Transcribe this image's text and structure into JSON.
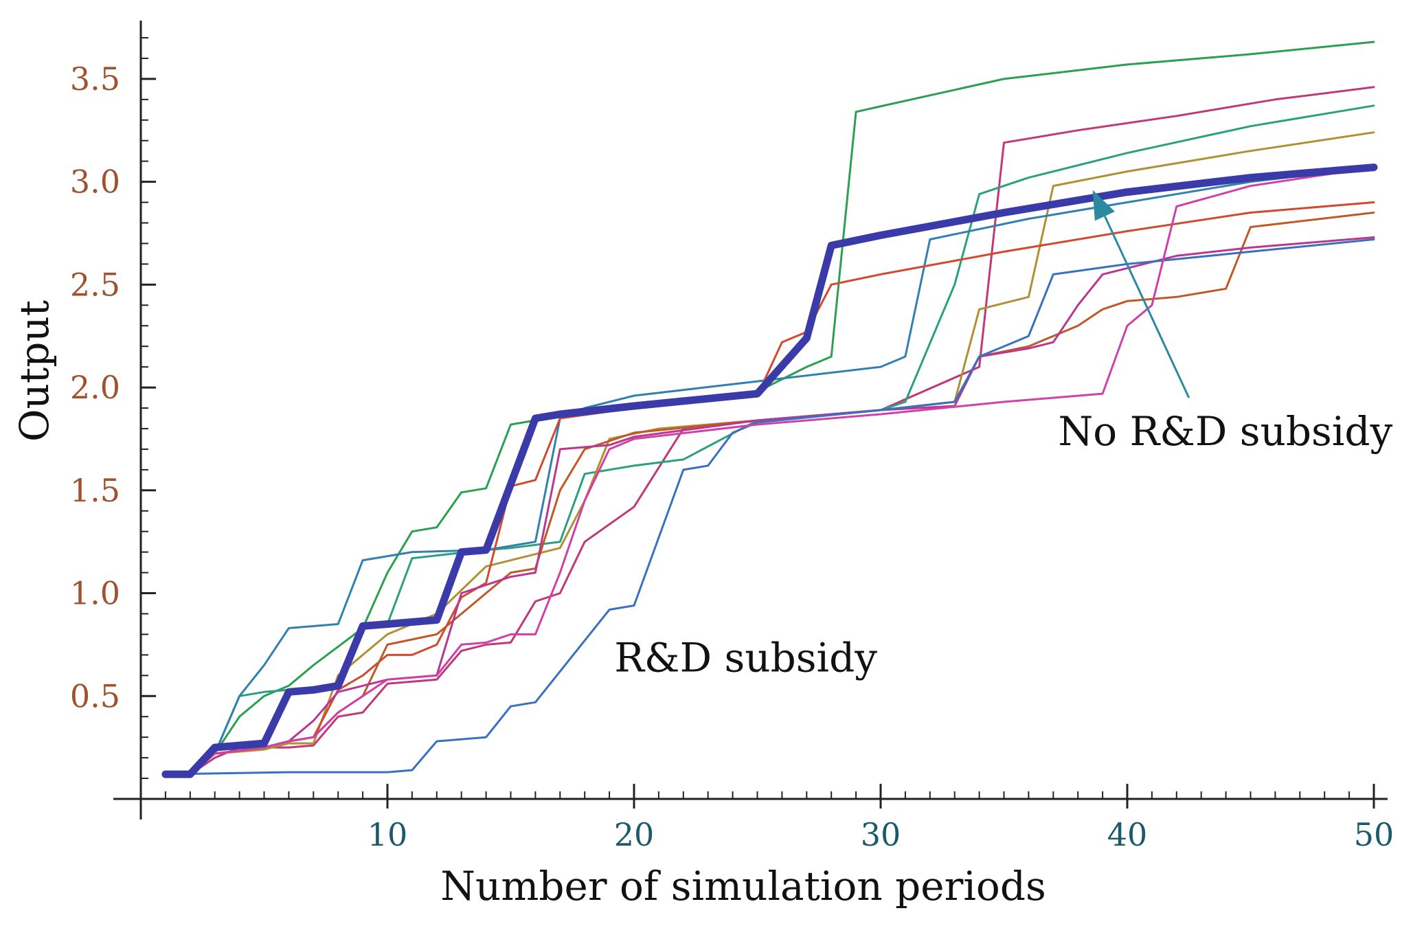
{
  "chart_data": {
    "type": "line",
    "title": "",
    "xlabel": "Number of simulation periods",
    "ylabel": "Output",
    "xlim": [
      0,
      50
    ],
    "ylim": [
      0,
      3.75
    ],
    "x_ticks": [
      10,
      20,
      30,
      40,
      50
    ],
    "y_ticks": [
      0.5,
      1.0,
      1.5,
      2.0,
      2.5,
      3.0,
      3.5
    ],
    "x_tick_labels": [
      "10",
      "20",
      "30",
      "40",
      "50"
    ],
    "y_tick_labels": [
      "0.5",
      "1.0",
      "1.5",
      "2.0",
      "2.5",
      "3.0",
      "3.5"
    ],
    "colors": {
      "x_tick_label": "#1a5a6a",
      "y_tick_label": "#a0522d",
      "axis": "#222222",
      "arrow": "#2a8aa0",
      "highlight": "#3a3aa8"
    },
    "annotations": [
      {
        "text": "No R&D subsidy",
        "x": 37.2,
        "y": 1.72
      },
      {
        "text": "R&D subsidy",
        "x": 19.2,
        "y": 0.62
      }
    ],
    "arrow": {
      "from": [
        42.5,
        1.95
      ],
      "to": [
        38.6,
        2.96
      ]
    },
    "series": [
      {
        "color": "#3a3aa8",
        "width": 11,
        "points": [
          [
            1,
            0.12
          ],
          [
            2,
            0.12
          ],
          [
            3,
            0.25
          ],
          [
            4,
            0.26
          ],
          [
            5,
            0.27
          ],
          [
            6,
            0.52
          ],
          [
            7,
            0.53
          ],
          [
            8,
            0.55
          ],
          [
            9,
            0.84
          ],
          [
            10,
            0.85
          ],
          [
            12,
            0.87
          ],
          [
            13,
            1.2
          ],
          [
            14,
            1.21
          ],
          [
            16,
            1.85
          ],
          [
            17,
            1.87
          ],
          [
            20,
            1.91
          ],
          [
            25,
            1.97
          ],
          [
            27,
            2.24
          ],
          [
            28,
            2.69
          ],
          [
            30,
            2.74
          ],
          [
            35,
            2.85
          ],
          [
            40,
            2.95
          ],
          [
            45,
            3.02
          ],
          [
            50,
            3.07
          ]
        ]
      },
      {
        "color": "#2aa050",
        "width": 3,
        "points": [
          [
            1,
            0.13
          ],
          [
            2,
            0.13
          ],
          [
            3,
            0.22
          ],
          [
            4,
            0.4
          ],
          [
            5,
            0.5
          ],
          [
            6,
            0.55
          ],
          [
            7,
            0.65
          ],
          [
            9,
            0.83
          ],
          [
            10,
            1.1
          ],
          [
            11,
            1.3
          ],
          [
            12,
            1.32
          ],
          [
            13,
            1.49
          ],
          [
            14,
            1.51
          ],
          [
            15,
            1.82
          ],
          [
            16,
            1.84
          ],
          [
            17,
            1.86
          ],
          [
            20,
            1.92
          ],
          [
            25,
            1.98
          ],
          [
            27,
            2.1
          ],
          [
            28,
            2.15
          ],
          [
            29,
            3.34
          ],
          [
            32,
            3.42
          ],
          [
            35,
            3.5
          ],
          [
            40,
            3.57
          ],
          [
            45,
            3.62
          ],
          [
            50,
            3.68
          ]
        ]
      },
      {
        "color": "#c03878",
        "width": 3,
        "points": [
          [
            1,
            0.12
          ],
          [
            2,
            0.12
          ],
          [
            3,
            0.2
          ],
          [
            4,
            0.25
          ],
          [
            6,
            0.25
          ],
          [
            7,
            0.26
          ],
          [
            8,
            0.4
          ],
          [
            9,
            0.42
          ],
          [
            10,
            0.56
          ],
          [
            11,
            0.57
          ],
          [
            12,
            0.58
          ],
          [
            13,
            0.72
          ],
          [
            14,
            0.75
          ],
          [
            15,
            0.76
          ],
          [
            16,
            0.96
          ],
          [
            17,
            1.0
          ],
          [
            18,
            1.25
          ],
          [
            20,
            1.42
          ],
          [
            22,
            1.8
          ],
          [
            25,
            1.84
          ],
          [
            30,
            1.89
          ],
          [
            34,
            2.1
          ],
          [
            35,
            3.19
          ],
          [
            38,
            3.25
          ],
          [
            42,
            3.32
          ],
          [
            46,
            3.4
          ],
          [
            50,
            3.46
          ]
        ]
      },
      {
        "color": "#2aa080",
        "width": 3,
        "points": [
          [
            1,
            0.12
          ],
          [
            2,
            0.12
          ],
          [
            3,
            0.22
          ],
          [
            4,
            0.5
          ],
          [
            5,
            0.52
          ],
          [
            7,
            0.54
          ],
          [
            8,
            0.55
          ],
          [
            9,
            0.84
          ],
          [
            10,
            0.85
          ],
          [
            11,
            1.17
          ],
          [
            14,
            1.21
          ],
          [
            15,
            1.22
          ],
          [
            17,
            1.25
          ],
          [
            18,
            1.58
          ],
          [
            20,
            1.62
          ],
          [
            22,
            1.65
          ],
          [
            25,
            1.84
          ],
          [
            30,
            1.89
          ],
          [
            31,
            1.93
          ],
          [
            33,
            2.5
          ],
          [
            34,
            2.94
          ],
          [
            36,
            3.02
          ],
          [
            40,
            3.14
          ],
          [
            45,
            3.27
          ],
          [
            50,
            3.37
          ]
        ]
      },
      {
        "color": "#b09030",
        "width": 3,
        "points": [
          [
            1,
            0.12
          ],
          [
            2,
            0.12
          ],
          [
            3,
            0.22
          ],
          [
            5,
            0.24
          ],
          [
            6,
            0.27
          ],
          [
            7,
            0.27
          ],
          [
            8,
            0.6
          ],
          [
            10,
            0.8
          ],
          [
            12,
            0.9
          ],
          [
            14,
            1.13
          ],
          [
            17,
            1.22
          ],
          [
            18,
            1.45
          ],
          [
            19,
            1.75
          ],
          [
            21,
            1.8
          ],
          [
            25,
            1.84
          ],
          [
            30,
            1.89
          ],
          [
            33,
            1.93
          ],
          [
            34,
            2.38
          ],
          [
            36,
            2.44
          ],
          [
            37,
            2.98
          ],
          [
            40,
            3.05
          ],
          [
            45,
            3.15
          ],
          [
            50,
            3.24
          ]
        ]
      },
      {
        "color": "#3080b0",
        "width": 3,
        "points": [
          [
            1,
            0.12
          ],
          [
            2,
            0.12
          ],
          [
            3,
            0.22
          ],
          [
            4,
            0.5
          ],
          [
            5,
            0.65
          ],
          [
            6,
            0.83
          ],
          [
            8,
            0.85
          ],
          [
            9,
            1.16
          ],
          [
            11,
            1.2
          ],
          [
            14,
            1.21
          ],
          [
            15,
            1.23
          ],
          [
            16,
            1.25
          ],
          [
            17,
            1.85
          ],
          [
            18,
            1.9
          ],
          [
            20,
            1.96
          ],
          [
            25,
            2.03
          ],
          [
            30,
            2.1
          ],
          [
            31,
            2.15
          ],
          [
            32,
            2.72
          ],
          [
            36,
            2.82
          ],
          [
            40,
            2.9
          ],
          [
            45,
            3.0
          ],
          [
            50,
            3.07
          ]
        ]
      },
      {
        "color": "#d04a30",
        "width": 3,
        "points": [
          [
            1,
            0.13
          ],
          [
            2,
            0.12
          ],
          [
            3,
            0.22
          ],
          [
            5,
            0.25
          ],
          [
            6,
            0.28
          ],
          [
            7,
            0.3
          ],
          [
            8,
            0.53
          ],
          [
            9,
            0.6
          ],
          [
            10,
            0.7
          ],
          [
            11,
            0.7
          ],
          [
            12,
            0.75
          ],
          [
            13,
            0.98
          ],
          [
            14,
            1.05
          ],
          [
            15,
            1.52
          ],
          [
            16,
            1.55
          ],
          [
            17,
            1.85
          ],
          [
            20,
            1.9
          ],
          [
            25,
            1.96
          ],
          [
            26,
            2.22
          ],
          [
            27,
            2.27
          ],
          [
            28,
            2.5
          ],
          [
            30,
            2.55
          ],
          [
            35,
            2.66
          ],
          [
            40,
            2.76
          ],
          [
            45,
            2.85
          ],
          [
            50,
            2.9
          ]
        ]
      },
      {
        "color": "#c05828",
        "width": 3,
        "points": [
          [
            1,
            0.12
          ],
          [
            2,
            0.12
          ],
          [
            3,
            0.22
          ],
          [
            5,
            0.25
          ],
          [
            6,
            0.28
          ],
          [
            7,
            0.3
          ],
          [
            8,
            0.42
          ],
          [
            9,
            0.5
          ],
          [
            10,
            0.75
          ],
          [
            12,
            0.8
          ],
          [
            13,
            0.9
          ],
          [
            14,
            1.0
          ],
          [
            15,
            1.1
          ],
          [
            16,
            1.12
          ],
          [
            17,
            1.5
          ],
          [
            18,
            1.7
          ],
          [
            20,
            1.78
          ],
          [
            25,
            1.84
          ],
          [
            30,
            1.89
          ],
          [
            33,
            1.93
          ],
          [
            34,
            2.15
          ],
          [
            36,
            2.2
          ],
          [
            37,
            2.25
          ],
          [
            38,
            2.3
          ],
          [
            39,
            2.38
          ],
          [
            40,
            2.42
          ],
          [
            42,
            2.44
          ],
          [
            44,
            2.48
          ],
          [
            45,
            2.78
          ],
          [
            50,
            2.85
          ]
        ]
      },
      {
        "color": "#b83890",
        "width": 3,
        "points": [
          [
            1,
            0.12
          ],
          [
            2,
            0.12
          ],
          [
            3,
            0.22
          ],
          [
            5,
            0.25
          ],
          [
            6,
            0.28
          ],
          [
            7,
            0.38
          ],
          [
            8,
            0.52
          ],
          [
            9,
            0.55
          ],
          [
            10,
            0.58
          ],
          [
            12,
            0.6
          ],
          [
            13,
            1.0
          ],
          [
            15,
            1.08
          ],
          [
            16,
            1.1
          ],
          [
            17,
            1.7
          ],
          [
            19,
            1.72
          ],
          [
            20,
            1.76
          ],
          [
            25,
            1.84
          ],
          [
            30,
            1.89
          ],
          [
            33,
            1.91
          ],
          [
            34,
            2.15
          ],
          [
            36,
            2.19
          ],
          [
            37,
            2.22
          ],
          [
            38,
            2.4
          ],
          [
            39,
            2.55
          ],
          [
            40,
            2.58
          ],
          [
            42,
            2.64
          ],
          [
            45,
            2.68
          ],
          [
            50,
            2.73
          ]
        ]
      },
      {
        "color": "#3a70c0",
        "width": 3,
        "points": [
          [
            1,
            0.12
          ],
          [
            6,
            0.13
          ],
          [
            10,
            0.13
          ],
          [
            11,
            0.14
          ],
          [
            12,
            0.28
          ],
          [
            14,
            0.3
          ],
          [
            15,
            0.45
          ],
          [
            16,
            0.47
          ],
          [
            19,
            0.92
          ],
          [
            20,
            0.94
          ],
          [
            22,
            1.6
          ],
          [
            23,
            1.62
          ],
          [
            24,
            1.78
          ],
          [
            25,
            1.83
          ],
          [
            30,
            1.89
          ],
          [
            33,
            1.93
          ],
          [
            34,
            2.15
          ],
          [
            35,
            2.2
          ],
          [
            36,
            2.25
          ],
          [
            37,
            2.55
          ],
          [
            40,
            2.6
          ],
          [
            45,
            2.66
          ],
          [
            50,
            2.72
          ]
        ]
      },
      {
        "color": "#d040a8",
        "width": 3,
        "points": [
          [
            1,
            0.12
          ],
          [
            2,
            0.12
          ],
          [
            3,
            0.22
          ],
          [
            5,
            0.25
          ],
          [
            6,
            0.28
          ],
          [
            7,
            0.3
          ],
          [
            8,
            0.42
          ],
          [
            10,
            0.58
          ],
          [
            12,
            0.6
          ],
          [
            13,
            0.75
          ],
          [
            14,
            0.76
          ],
          [
            15,
            0.8
          ],
          [
            16,
            0.8
          ],
          [
            17,
            1.1
          ],
          [
            18,
            1.45
          ],
          [
            19,
            1.7
          ],
          [
            20,
            1.75
          ],
          [
            25,
            1.82
          ],
          [
            30,
            1.87
          ],
          [
            35,
            1.93
          ],
          [
            39,
            1.97
          ],
          [
            40,
            2.3
          ],
          [
            41,
            2.4
          ],
          [
            42,
            2.88
          ],
          [
            45,
            2.98
          ],
          [
            50,
            3.07
          ]
        ]
      }
    ]
  }
}
